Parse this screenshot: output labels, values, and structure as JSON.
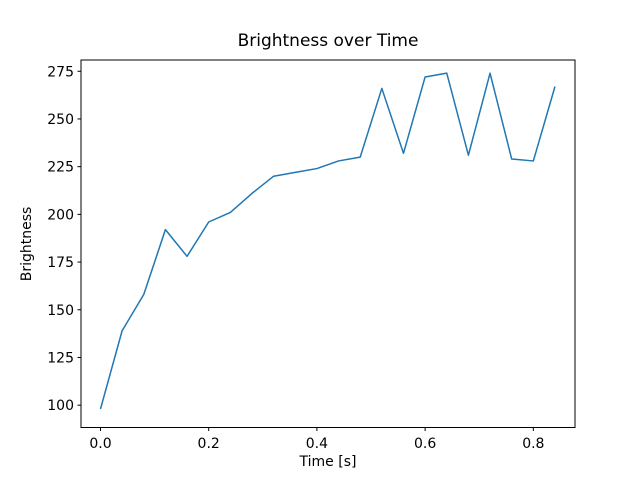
{
  "figure": {
    "background": "#ffffff",
    "frame_color": "#000000",
    "text_color": "#000000"
  },
  "chart_data": {
    "type": "line",
    "title": "Brightness over Time",
    "xlabel": "Time [s]",
    "ylabel": "Brightness",
    "x": [
      0.0,
      0.04,
      0.08,
      0.12,
      0.16,
      0.2,
      0.24,
      0.28,
      0.32,
      0.36,
      0.4,
      0.44,
      0.48,
      0.52,
      0.56,
      0.6,
      0.64,
      0.68,
      0.72,
      0.76,
      0.8,
      0.84
    ],
    "values": [
      98,
      139,
      158,
      192,
      178,
      196,
      201,
      211,
      220,
      222,
      224,
      228,
      230,
      266,
      232,
      272,
      274,
      231,
      274,
      229,
      228,
      267
    ],
    "series_name": "Brightness",
    "line_color": "#1f77b4",
    "line_width": 1.5,
    "xlim": [
      -0.036,
      0.877
    ],
    "ylim": [
      88.3,
      280.9
    ],
    "xticks": [
      0.0,
      0.2,
      0.4,
      0.6,
      0.8
    ],
    "xtick_labels": [
      "0.0",
      "0.2",
      "0.4",
      "0.6",
      "0.8"
    ],
    "yticks": [
      100,
      125,
      150,
      175,
      200,
      225,
      250,
      275
    ],
    "ytick_labels": [
      "100",
      "125",
      "150",
      "175",
      "200",
      "225",
      "250",
      "275"
    ],
    "grid": false,
    "legend_position": "none"
  }
}
